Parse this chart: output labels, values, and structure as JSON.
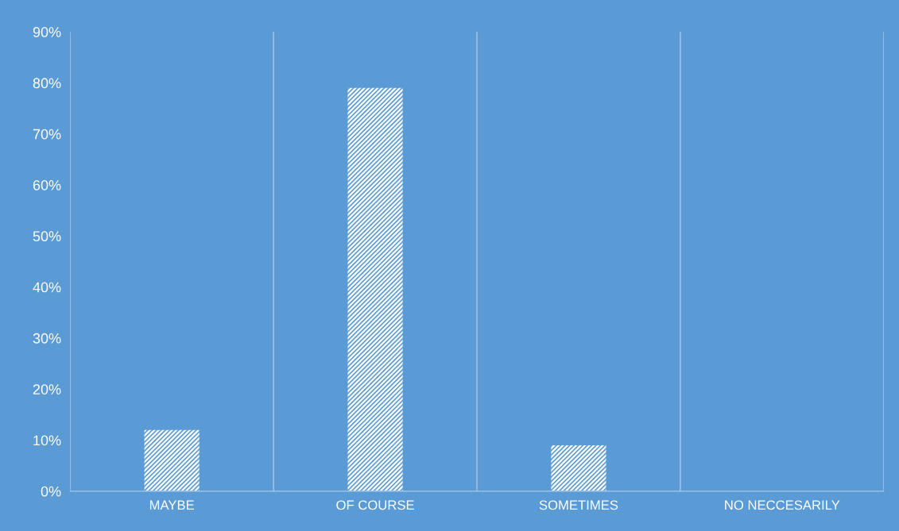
{
  "chart_data": {
    "type": "bar",
    "categories": [
      "MAYBE",
      "OF COURSE",
      "SOMETIMES",
      "NO NECCESARILY"
    ],
    "values": [
      12,
      79,
      9,
      0
    ],
    "color": "#ffffff",
    "ylim": [
      0,
      90
    ],
    "yticks": [
      {
        "value": 0,
        "label": "0%"
      },
      {
        "value": 10,
        "label": "10%"
      },
      {
        "value": 20,
        "label": "20%"
      },
      {
        "value": 30,
        "label": "30%"
      },
      {
        "value": 40,
        "label": "40%"
      },
      {
        "value": 50,
        "label": "50%"
      },
      {
        "value": 60,
        "label": "60%"
      },
      {
        "value": 70,
        "label": "70%"
      },
      {
        "value": 80,
        "label": "80%"
      },
      {
        "value": 90,
        "label": "90%"
      }
    ],
    "grid": "x"
  }
}
